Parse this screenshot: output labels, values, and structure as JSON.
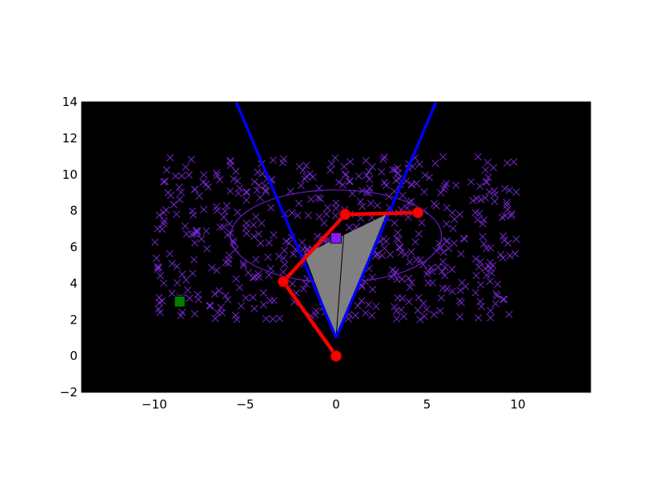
{
  "chart_data": {
    "type": "scatter",
    "title": "",
    "xlabel": "",
    "ylabel": "",
    "xlim": [
      -14,
      14
    ],
    "ylim": [
      -2,
      14
    ],
    "x_ticks": [
      -10,
      -5,
      0,
      5,
      10
    ],
    "y_ticks": [
      -2,
      0,
      2,
      4,
      6,
      8,
      10,
      12,
      14
    ],
    "x_tick_labels": [
      "−10",
      "−5",
      "0",
      "5",
      "10"
    ],
    "y_tick_labels": [
      "−2",
      "0",
      "2",
      "4",
      "6",
      "8",
      "10",
      "12",
      "14"
    ],
    "grid": false,
    "legend": false,
    "background_color": "#000000",
    "scatter_cloud": {
      "marker": "x",
      "color": "#7b2bd9",
      "count": 520,
      "x_range": [
        -10,
        10
      ],
      "y_range": [
        2,
        11
      ]
    },
    "robot_arm": {
      "color": "#ff0000",
      "joints": [
        {
          "x": 0,
          "y": 0
        },
        {
          "x": -2.9,
          "y": 4.1
        },
        {
          "x": 0.5,
          "y": 7.8
        },
        {
          "x": 4.5,
          "y": 7.9
        }
      ]
    },
    "view_cone": {
      "color": "#0000ff",
      "apex": {
        "x": 0,
        "y": 1
      },
      "left_ray_end": {
        "x": -5.5,
        "y": 14
      },
      "right_ray_end": {
        "x": 5.5,
        "y": 14
      }
    },
    "filled_triangle": {
      "fill": "#808080",
      "points": [
        {
          "x": 0,
          "y": 1
        },
        {
          "x": -1.75,
          "y": 5.6
        },
        {
          "x": 2.75,
          "y": 7.8
        }
      ],
      "inner_line_to": {
        "x": 0.5,
        "y": 7.8
      }
    },
    "ellipse": {
      "color": "#6a1bd1",
      "center": {
        "x": 0,
        "y": 6.6
      },
      "semi_x": 5.8,
      "semi_y": 2.55
    },
    "markers": [
      {
        "name": "target",
        "shape": "square",
        "color": "#8a19f2",
        "x": 0,
        "y": 6.5
      },
      {
        "name": "goal",
        "shape": "square",
        "color": "#008000",
        "x": -8.6,
        "y": 3.0
      }
    ]
  }
}
